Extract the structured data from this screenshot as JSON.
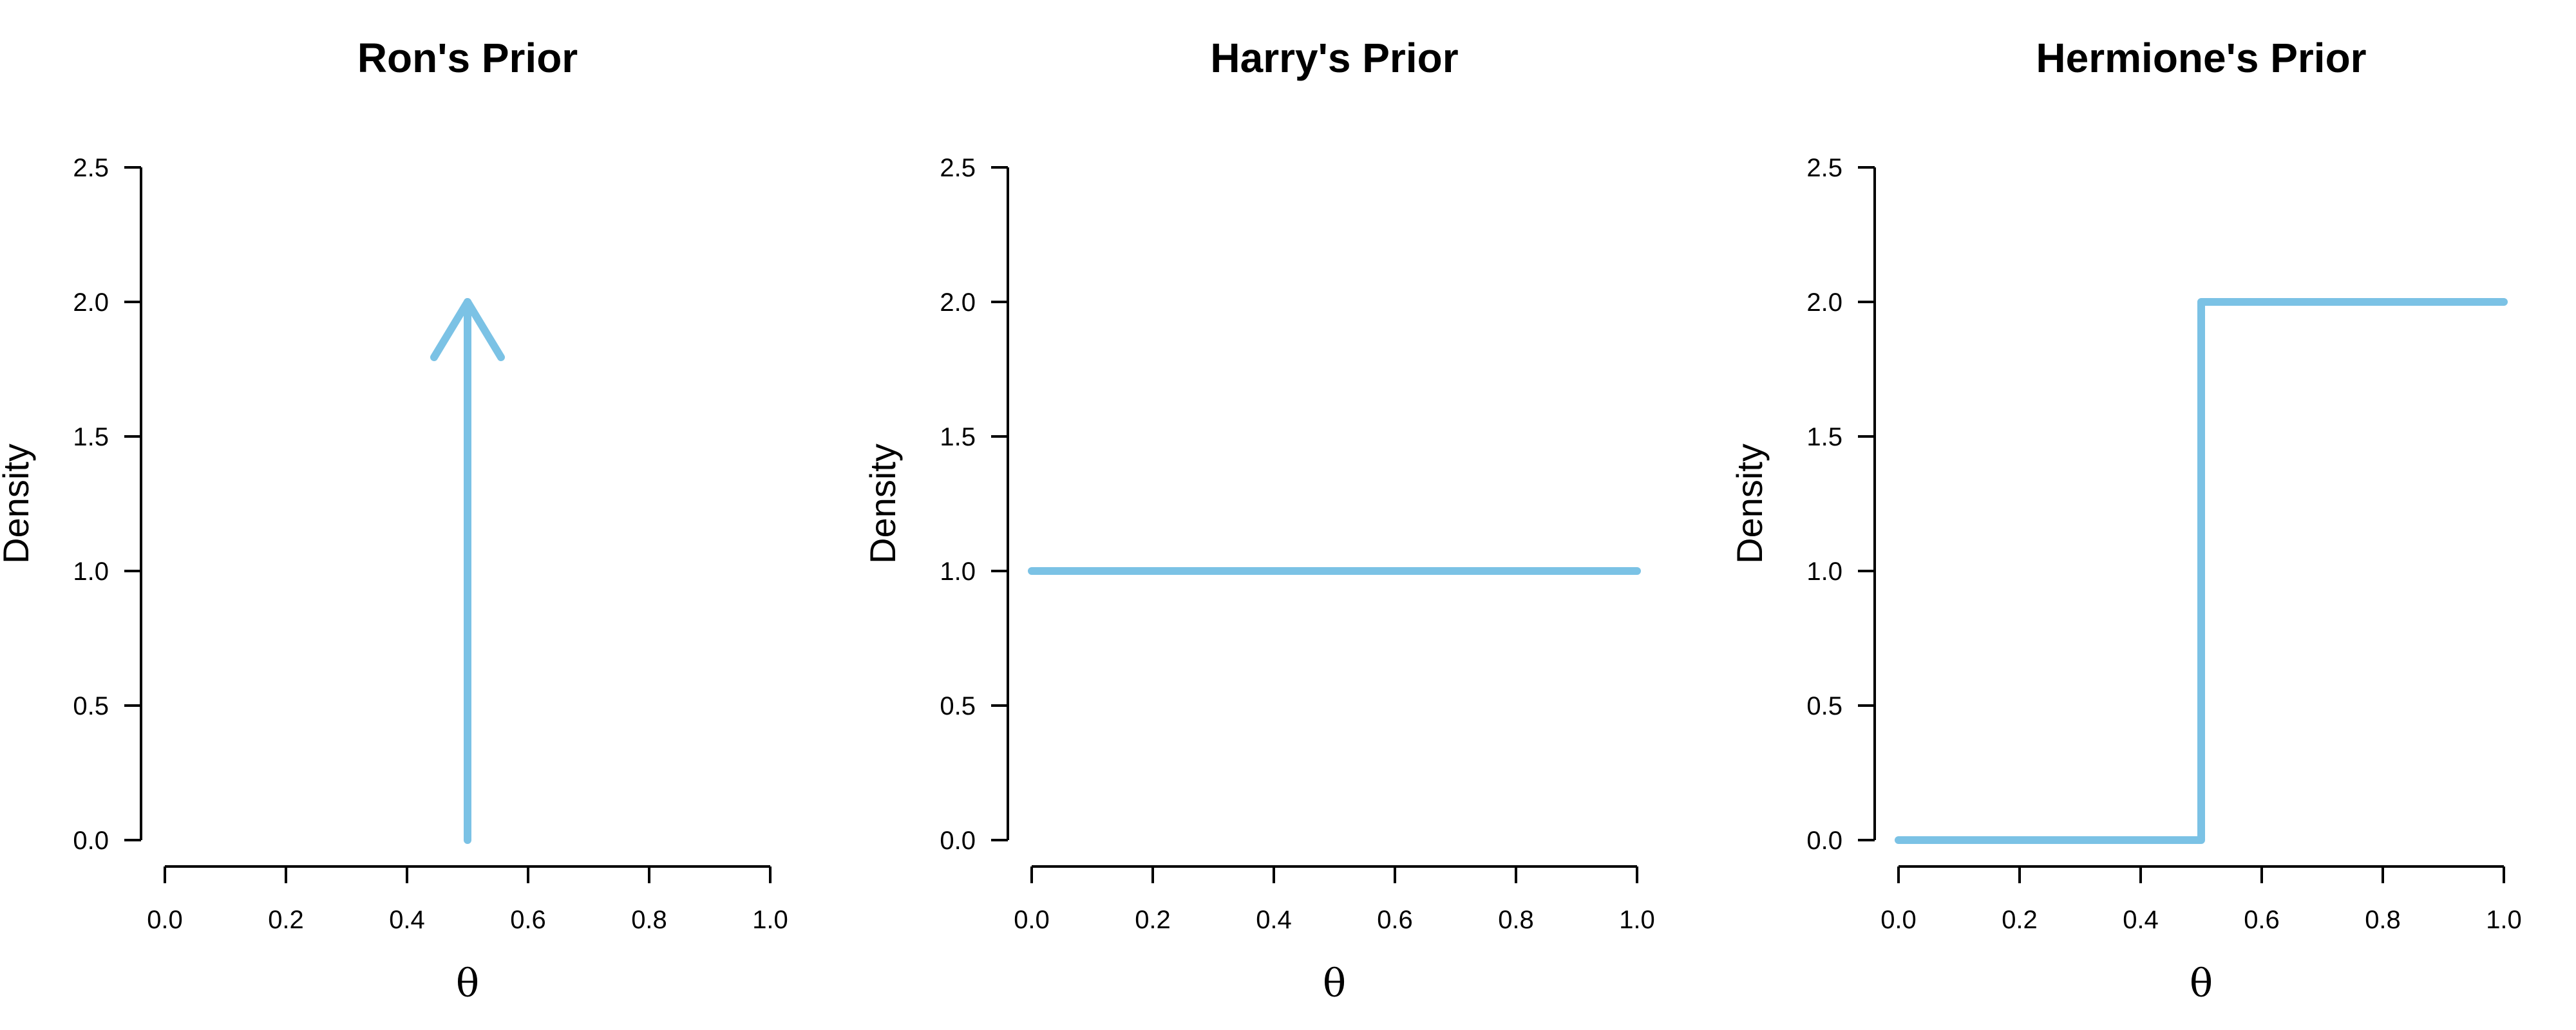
{
  "chart_data": [
    {
      "type": "line",
      "title": "Ron's Prior",
      "xlabel": "θ",
      "ylabel": "Density",
      "xlim": [
        0,
        1
      ],
      "ylim": [
        0,
        2.5
      ],
      "xticks": [
        "0.0",
        "0.2",
        "0.4",
        "0.6",
        "0.8",
        "1.0"
      ],
      "yticks": [
        "0.0",
        "0.5",
        "1.0",
        "1.5",
        "2.0",
        "2.5"
      ],
      "grid": false,
      "color": "#7bc2e5",
      "series": [
        {
          "x": [
            0.5,
            0.5
          ],
          "y": [
            0,
            2.0
          ],
          "arrowhead": true
        }
      ]
    },
    {
      "type": "line",
      "title": "Harry's Prior",
      "xlabel": "θ",
      "ylabel": "Density",
      "xlim": [
        0,
        1
      ],
      "ylim": [
        0,
        2.5
      ],
      "xticks": [
        "0.0",
        "0.2",
        "0.4",
        "0.6",
        "0.8",
        "1.0"
      ],
      "yticks": [
        "0.0",
        "0.5",
        "1.0",
        "1.5",
        "2.0",
        "2.5"
      ],
      "grid": false,
      "color": "#7bc2e5",
      "series": [
        {
          "x": [
            0,
            1
          ],
          "y": [
            1.0,
            1.0
          ]
        }
      ]
    },
    {
      "type": "line",
      "title": "Hermione's Prior",
      "xlabel": "θ",
      "ylabel": "Density",
      "xlim": [
        0,
        1
      ],
      "ylim": [
        0,
        2.5
      ],
      "xticks": [
        "0.0",
        "0.2",
        "0.4",
        "0.6",
        "0.8",
        "1.0"
      ],
      "yticks": [
        "0.0",
        "0.5",
        "1.0",
        "1.5",
        "2.0",
        "2.5"
      ],
      "grid": false,
      "color": "#7bc2e5",
      "series": [
        {
          "x": [
            0,
            0.5,
            0.5,
            1
          ],
          "y": [
            0,
            0,
            2.0,
            2.0
          ]
        }
      ]
    }
  ]
}
